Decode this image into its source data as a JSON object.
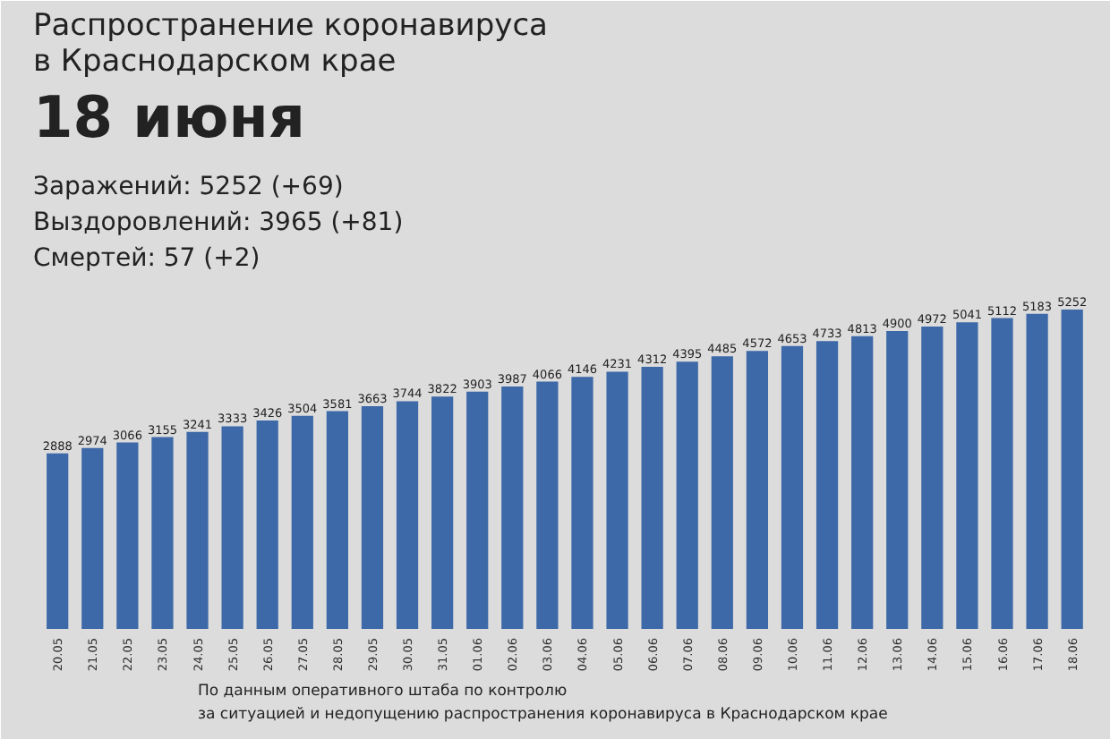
{
  "chart_data": {
    "type": "bar",
    "title": "Распространение коронавируса в Краснодарском крае",
    "subtitle": "18 июня",
    "annotations": [
      "Заражений: 5252 (+69)",
      "Выздоровлений: 3965 (+81)",
      "Смертей: 57 (+2)",
      "По данным оперативного штаба по контролю за ситуацией и недопущению распространения коронавируса в Краснодарском крае"
    ],
    "categories": [
      "20.05",
      "21.05",
      "22.05",
      "23.05",
      "24.05",
      "25.05",
      "26.05",
      "27.05",
      "28.05",
      "29.05",
      "30.05",
      "31.05",
      "01.06",
      "02.06",
      "03.06",
      "04.06",
      "05.06",
      "06.06",
      "07.06",
      "08.06",
      "09.06",
      "10.06",
      "11.06",
      "12.06",
      "13.06",
      "14.06",
      "15.06",
      "16.06",
      "17.06",
      "18.06"
    ],
    "values": [
      2888,
      2974,
      3066,
      3155,
      3241,
      3333,
      3426,
      3504,
      3581,
      3663,
      3744,
      3822,
      3903,
      3987,
      4066,
      4146,
      4231,
      4312,
      4395,
      4485,
      4572,
      4653,
      4733,
      4813,
      4900,
      4972,
      5041,
      5112,
      5183,
      5252
    ],
    "color": "#3d69a8",
    "data_labels": true
  }
}
